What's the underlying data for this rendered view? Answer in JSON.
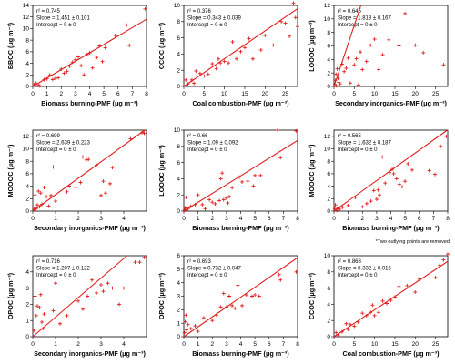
{
  "footnote": "*Two outlying points are removed",
  "chart_data": [
    {
      "type": "scatter",
      "xlabel": "Biomass burning-PMF (μg m⁻³)",
      "ylabel": "BBOC (μg m⁻³)",
      "xlim": [
        0,
        8
      ],
      "ylim": [
        0,
        14
      ],
      "xticks": [
        0,
        1,
        2,
        3,
        4,
        5,
        6,
        7,
        8
      ],
      "yticks": [
        0,
        2,
        4,
        6,
        8,
        10,
        12,
        14
      ],
      "stats": [
        "r² = 0.745",
        "Slope = 1.451 ± 0.101",
        "Intercept = 0 ± 0"
      ],
      "slope": 1.451,
      "points": [
        [
          0.1,
          0.3
        ],
        [
          0.2,
          0.6
        ],
        [
          0.4,
          0.2
        ],
        [
          0.5,
          0.1
        ],
        [
          0.8,
          1.2
        ],
        [
          1.0,
          1.3
        ],
        [
          1.2,
          2.0
        ],
        [
          1.4,
          1.2
        ],
        [
          1.6,
          1.4
        ],
        [
          1.8,
          1.5
        ],
        [
          2.0,
          3.0
        ],
        [
          2.2,
          2.3
        ],
        [
          2.4,
          2.6
        ],
        [
          2.6,
          3.5
        ],
        [
          2.8,
          4.2
        ],
        [
          3.0,
          4.6
        ],
        [
          3.2,
          5.1
        ],
        [
          3.4,
          3.6
        ],
        [
          3.6,
          2.0
        ],
        [
          3.8,
          5.5
        ],
        [
          4.0,
          5.8
        ],
        [
          4.2,
          3.2
        ],
        [
          4.5,
          5.0
        ],
        [
          4.7,
          7.0
        ],
        [
          4.9,
          4.3
        ],
        [
          5.1,
          6.7
        ],
        [
          5.8,
          8.8
        ],
        [
          6.6,
          10.6
        ],
        [
          6.8,
          7.1
        ],
        [
          7.9,
          13.4
        ]
      ]
    },
    {
      "type": "scatter",
      "xlabel": "Coal combustion-PMF (μg m⁻³)",
      "ylabel": "CCOC (μg m⁻³)",
      "xlim": [
        0,
        28
      ],
      "ylim": [
        0,
        10
      ],
      "xticks": [
        0,
        5,
        10,
        15,
        20,
        25
      ],
      "yticks": [
        0,
        2,
        4,
        6,
        8,
        10
      ],
      "stats": [
        "r² = 0.376",
        "Slope = 0.343 ± 0.039",
        "Intercept = 0 ± 0"
      ],
      "slope": 0.343,
      "points": [
        [
          0.5,
          0.8
        ],
        [
          1,
          0.3
        ],
        [
          2,
          0.8
        ],
        [
          2.5,
          0.4
        ],
        [
          3,
          1.9
        ],
        [
          4,
          1.6
        ],
        [
          5,
          1.3
        ],
        [
          6,
          1.5
        ],
        [
          7,
          2.8
        ],
        [
          8,
          2.2
        ],
        [
          8.5,
          3.4
        ],
        [
          9,
          2.9
        ],
        [
          10,
          3.1
        ],
        [
          11,
          2.9
        ],
        [
          12,
          5.5
        ],
        [
          13,
          3.4
        ],
        [
          14,
          4.3
        ],
        [
          15,
          4.8
        ],
        [
          16,
          5.9
        ],
        [
          17,
          3.4
        ],
        [
          19,
          4.5
        ],
        [
          20,
          6.3
        ],
        [
          22,
          5.1
        ],
        [
          24,
          8.0
        ],
        [
          25,
          7.8
        ],
        [
          26,
          6.2
        ],
        [
          27,
          10.3
        ],
        [
          27.5,
          8.5
        ],
        [
          28,
          7.4
        ]
      ]
    },
    {
      "type": "scatter",
      "xlabel": "Secondary inorganics-PMF (μg m⁻³)",
      "ylabel": "LOOOC (μg m⁻³)",
      "xlim": [
        0,
        28
      ],
      "ylim": [
        0,
        12
      ],
      "xticks": [
        0,
        5,
        10,
        15,
        20,
        25
      ],
      "yticks": [
        0,
        2,
        4,
        6,
        8,
        10,
        12
      ],
      "stats": [
        "r² = 0.645",
        "Slope = 1.813 ± 0.167",
        "Intercept = 0 ± 0"
      ],
      "slope": 1.813,
      "points": [
        [
          0.2,
          0.3
        ],
        [
          0.3,
          0.9
        ],
        [
          0.5,
          1.8
        ],
        [
          0.6,
          0.1
        ],
        [
          0.8,
          2.6
        ],
        [
          1.0,
          1.2
        ],
        [
          1.2,
          0.6
        ],
        [
          1.5,
          0.4
        ],
        [
          2.0,
          3.3
        ],
        [
          2.5,
          2.2
        ],
        [
          3.0,
          2.7
        ],
        [
          3.5,
          4.2
        ],
        [
          4.0,
          0.5
        ],
        [
          5.0,
          3.2
        ],
        [
          5.5,
          4.1
        ],
        [
          6.0,
          0.2
        ],
        [
          6.5,
          5.1
        ],
        [
          7.0,
          2.5
        ],
        [
          8.0,
          3.7
        ],
        [
          9.0,
          6.1
        ],
        [
          10.0,
          7.0
        ],
        [
          11.0,
          2.5
        ],
        [
          12.0,
          4.7
        ],
        [
          13.5,
          6.9
        ],
        [
          16.0,
          6.0
        ],
        [
          17.5,
          10.8
        ],
        [
          20.0,
          6.1
        ],
        [
          22.0,
          5.0
        ],
        [
          27.0,
          3.2
        ]
      ]
    },
    {
      "type": "scatter",
      "xlabel": "Secondary inorganics-PMF (μg m⁻³)",
      "ylabel": "MOOOC (μg m⁻³)",
      "xlim": [
        0,
        5
      ],
      "ylim": [
        0,
        13
      ],
      "xticks": [
        0,
        1,
        2,
        3,
        4
      ],
      "yticks": [
        0,
        2,
        4,
        6,
        8,
        10,
        12
      ],
      "stats": [
        "r² = 0.699",
        "Slope = 2.639 ± 0.223",
        "Intercept = 0 ± 0"
      ],
      "slope": 2.639,
      "points": [
        [
          0.05,
          0.3
        ],
        [
          0.1,
          2.6
        ],
        [
          0.15,
          0.4
        ],
        [
          0.2,
          1.0
        ],
        [
          0.25,
          3.2
        ],
        [
          0.3,
          0.7
        ],
        [
          0.35,
          2.9
        ],
        [
          0.4,
          1.1
        ],
        [
          0.5,
          3.8
        ],
        [
          0.6,
          2.3
        ],
        [
          0.7,
          0.8
        ],
        [
          0.8,
          2.5
        ],
        [
          0.9,
          7.1
        ],
        [
          1.0,
          1.6
        ],
        [
          1.5,
          3.1
        ],
        [
          1.6,
          4.0
        ],
        [
          1.9,
          3.8
        ],
        [
          2.1,
          4.6
        ],
        [
          2.2,
          8.7
        ],
        [
          2.35,
          8.2
        ],
        [
          2.45,
          8.3
        ],
        [
          2.8,
          7.4
        ],
        [
          3.0,
          2.5
        ],
        [
          3.1,
          4.8
        ],
        [
          3.2,
          2.9
        ],
        [
          3.4,
          4.4
        ],
        [
          3.5,
          7.0
        ],
        [
          4.3,
          11.6
        ],
        [
          4.8,
          12.6
        ],
        [
          4.9,
          12.5
        ]
      ]
    },
    {
      "type": "scatter",
      "xlabel": "Biomass burning-PMF (μg m⁻³)",
      "ylabel": "LOOOC (μg m⁻³)",
      "xlim": [
        0,
        8
      ],
      "ylim": [
        0,
        10
      ],
      "xticks": [
        0,
        1,
        2,
        3,
        4,
        5,
        6,
        7,
        8
      ],
      "yticks": [
        0,
        2,
        4,
        6,
        8,
        10
      ],
      "stats": [
        "r² = 0.66",
        "Slope = 1.09 ± 0.092",
        "Intercept = 0 ± 0"
      ],
      "slope": 1.09,
      "points": [
        [
          0.05,
          0.1
        ],
        [
          0.1,
          0.4
        ],
        [
          0.15,
          1.7
        ],
        [
          0.2,
          0.2
        ],
        [
          0.3,
          0.3
        ],
        [
          0.5,
          0.6
        ],
        [
          0.8,
          0.8
        ],
        [
          1.0,
          2.0
        ],
        [
          1.3,
          0.8
        ],
        [
          1.5,
          0.3
        ],
        [
          1.8,
          1.4
        ],
        [
          2.0,
          1.1
        ],
        [
          2.2,
          0.9
        ],
        [
          2.5,
          1.3
        ],
        [
          2.6,
          4.0
        ],
        [
          2.7,
          4.7
        ],
        [
          2.8,
          1.4
        ],
        [
          3.0,
          1.6
        ],
        [
          3.1,
          1.0
        ],
        [
          3.2,
          1.8
        ],
        [
          3.4,
          2.9
        ],
        [
          3.9,
          4.2
        ],
        [
          4.1,
          3.6
        ],
        [
          4.5,
          3.7
        ],
        [
          4.9,
          3.1
        ],
        [
          5.0,
          4.4
        ],
        [
          5.4,
          4.4
        ],
        [
          6.6,
          10.0
        ],
        [
          6.8,
          6.6
        ],
        [
          7.9,
          9.9
        ]
      ]
    },
    {
      "type": "scatter",
      "xlabel": "Biomass burning-PMF (μg m⁻³)",
      "ylabel": "MOOOC (μg m⁻³)",
      "xlim": [
        0,
        8
      ],
      "ylim": [
        0,
        13
      ],
      "xticks": [
        0,
        1,
        2,
        3,
        4,
        5,
        6,
        7,
        8
      ],
      "yticks": [
        0,
        2,
        4,
        6,
        8,
        10,
        12
      ],
      "stats": [
        "r² = 0.565",
        "Slope = 1.632 ± 0.187",
        "Intercept = 0 ± 0"
      ],
      "slope": 1.632,
      "points": [
        [
          0.05,
          0.4
        ],
        [
          0.1,
          1.0
        ],
        [
          0.2,
          0.1
        ],
        [
          0.3,
          0.5
        ],
        [
          0.4,
          0.3
        ],
        [
          0.6,
          0.6
        ],
        [
          1.0,
          0.9
        ],
        [
          1.5,
          2.2
        ],
        [
          2.0,
          0.7
        ],
        [
          2.3,
          1.2
        ],
        [
          2.6,
          1.6
        ],
        [
          2.8,
          3.3
        ],
        [
          3.0,
          1.9
        ],
        [
          3.1,
          3.4
        ],
        [
          3.2,
          2.6
        ],
        [
          3.4,
          8.7
        ],
        [
          3.6,
          4.5
        ],
        [
          3.9,
          6.2
        ],
        [
          4.1,
          6.7
        ],
        [
          4.2,
          6.0
        ],
        [
          4.4,
          5.2
        ],
        [
          4.6,
          4.3
        ],
        [
          4.8,
          3.9
        ],
        [
          5.0,
          4.8
        ],
        [
          5.2,
          7.6
        ],
        [
          5.5,
          6.6
        ],
        [
          6.7,
          6.5
        ],
        [
          7.1,
          5.9
        ],
        [
          7.5,
          10.4
        ],
        [
          7.9,
          12.0
        ]
      ]
    },
    {
      "type": "scatter",
      "xlabel": "Secondary inorganics-PMF (μg m⁻³)",
      "ylabel": "OPOC (μg m⁻³)",
      "xlim": [
        0,
        5
      ],
      "ylim": [
        0,
        5
      ],
      "xticks": [
        0,
        1,
        2,
        3,
        4
      ],
      "yticks": [
        0,
        1,
        2,
        3,
        4
      ],
      "stats": [
        "r² = 0.716",
        "Slope = 1.207 ± 0.122",
        "Intercept = 0 ± 0"
      ],
      "slope": 1.207,
      "points": [
        [
          0.05,
          0.4
        ],
        [
          0.1,
          2.5
        ],
        [
          0.15,
          1.3
        ],
        [
          0.2,
          1.9
        ],
        [
          0.3,
          1.8
        ],
        [
          0.35,
          2.6
        ],
        [
          0.4,
          0.9
        ],
        [
          0.45,
          0.5
        ],
        [
          0.5,
          1.4
        ],
        [
          0.9,
          1.6
        ],
        [
          1.0,
          3.3
        ],
        [
          1.2,
          0.8
        ],
        [
          1.5,
          1.3
        ],
        [
          2.0,
          2.2
        ],
        [
          2.2,
          1.7
        ],
        [
          2.4,
          2.5
        ],
        [
          2.6,
          3.5
        ],
        [
          2.8,
          2.7
        ],
        [
          3.0,
          3.2
        ],
        [
          3.1,
          2.8
        ],
        [
          3.3,
          3.3
        ],
        [
          3.5,
          3.0
        ],
        [
          3.8,
          2.0
        ],
        [
          4.0,
          3.0
        ],
        [
          4.5,
          4.6
        ],
        [
          4.7,
          4.6
        ],
        [
          4.9,
          4.9
        ]
      ]
    },
    {
      "type": "scatter",
      "xlabel": "Biomass burning-PMF (μg m⁻³)",
      "ylabel": "OPOC (μg m⁻³)",
      "xlim": [
        0,
        8
      ],
      "ylim": [
        0,
        6
      ],
      "xticks": [
        0,
        1,
        2,
        3,
        4,
        5,
        6,
        7,
        8
      ],
      "yticks": [
        0,
        1,
        2,
        3,
        4,
        5,
        6
      ],
      "stats": [
        "r² = 0.693",
        "Slope = 0.732 ± 0.047",
        "Intercept = 0 ± 0"
      ],
      "slope": 0.732,
      "points": [
        [
          0.05,
          0.3
        ],
        [
          0.1,
          1.1
        ],
        [
          0.15,
          1.6
        ],
        [
          0.2,
          0.5
        ],
        [
          0.3,
          0.9
        ],
        [
          0.5,
          0.6
        ],
        [
          0.8,
          0.8
        ],
        [
          1.0,
          0.4
        ],
        [
          1.4,
          1.4
        ],
        [
          2.0,
          1.2
        ],
        [
          2.3,
          1.6
        ],
        [
          2.6,
          2.2
        ],
        [
          2.8,
          3.2
        ],
        [
          3.0,
          2.2
        ],
        [
          3.2,
          3.0
        ],
        [
          3.4,
          2.3
        ],
        [
          3.6,
          2.1
        ],
        [
          3.8,
          3.8
        ],
        [
          4.1,
          2.3
        ],
        [
          4.4,
          3.1
        ],
        [
          4.8,
          3.0
        ],
        [
          5.0,
          3.1
        ],
        [
          5.3,
          3.0
        ],
        [
          6.7,
          4.6
        ],
        [
          6.8,
          4.2
        ],
        [
          7.9,
          4.8
        ],
        [
          8.0,
          5.1
        ]
      ]
    },
    {
      "type": "scatter",
      "xlabel": "Coal combustion-PMF (μg m⁻³)",
      "ylabel": "CCOC (μg m⁻³)",
      "xlim": [
        0,
        28
      ],
      "ylim": [
        0,
        10
      ],
      "xticks": [
        0,
        5,
        10,
        15,
        20,
        25
      ],
      "yticks": [
        0,
        2,
        4,
        6,
        8,
        10
      ],
      "stats": [
        "r² = 0.868",
        "Slope = 0.332 ± 0.015",
        "Intercept = 0 ± 0"
      ],
      "slope": 0.332,
      "points": [
        [
          0.5,
          0.5
        ],
        [
          1,
          0.2
        ],
        [
          2,
          0.6
        ],
        [
          3,
          1.6
        ],
        [
          3.5,
          0.9
        ],
        [
          4,
          1.5
        ],
        [
          5,
          1.3
        ],
        [
          6,
          1.8
        ],
        [
          7,
          2.9
        ],
        [
          8,
          2.6
        ],
        [
          9,
          3.0
        ],
        [
          9.5,
          3.9
        ],
        [
          10,
          2.6
        ],
        [
          11,
          3.0
        ],
        [
          12,
          4.4
        ],
        [
          13,
          4.1
        ],
        [
          14,
          4.5
        ],
        [
          15,
          4.9
        ],
        [
          16,
          6.2
        ],
        [
          18,
          6.3
        ],
        [
          20,
          5.5
        ],
        [
          21,
          7.1
        ],
        [
          25,
          7.3
        ],
        [
          26,
          8.8
        ],
        [
          27,
          9.5
        ],
        [
          28,
          10.2
        ]
      ]
    }
  ]
}
